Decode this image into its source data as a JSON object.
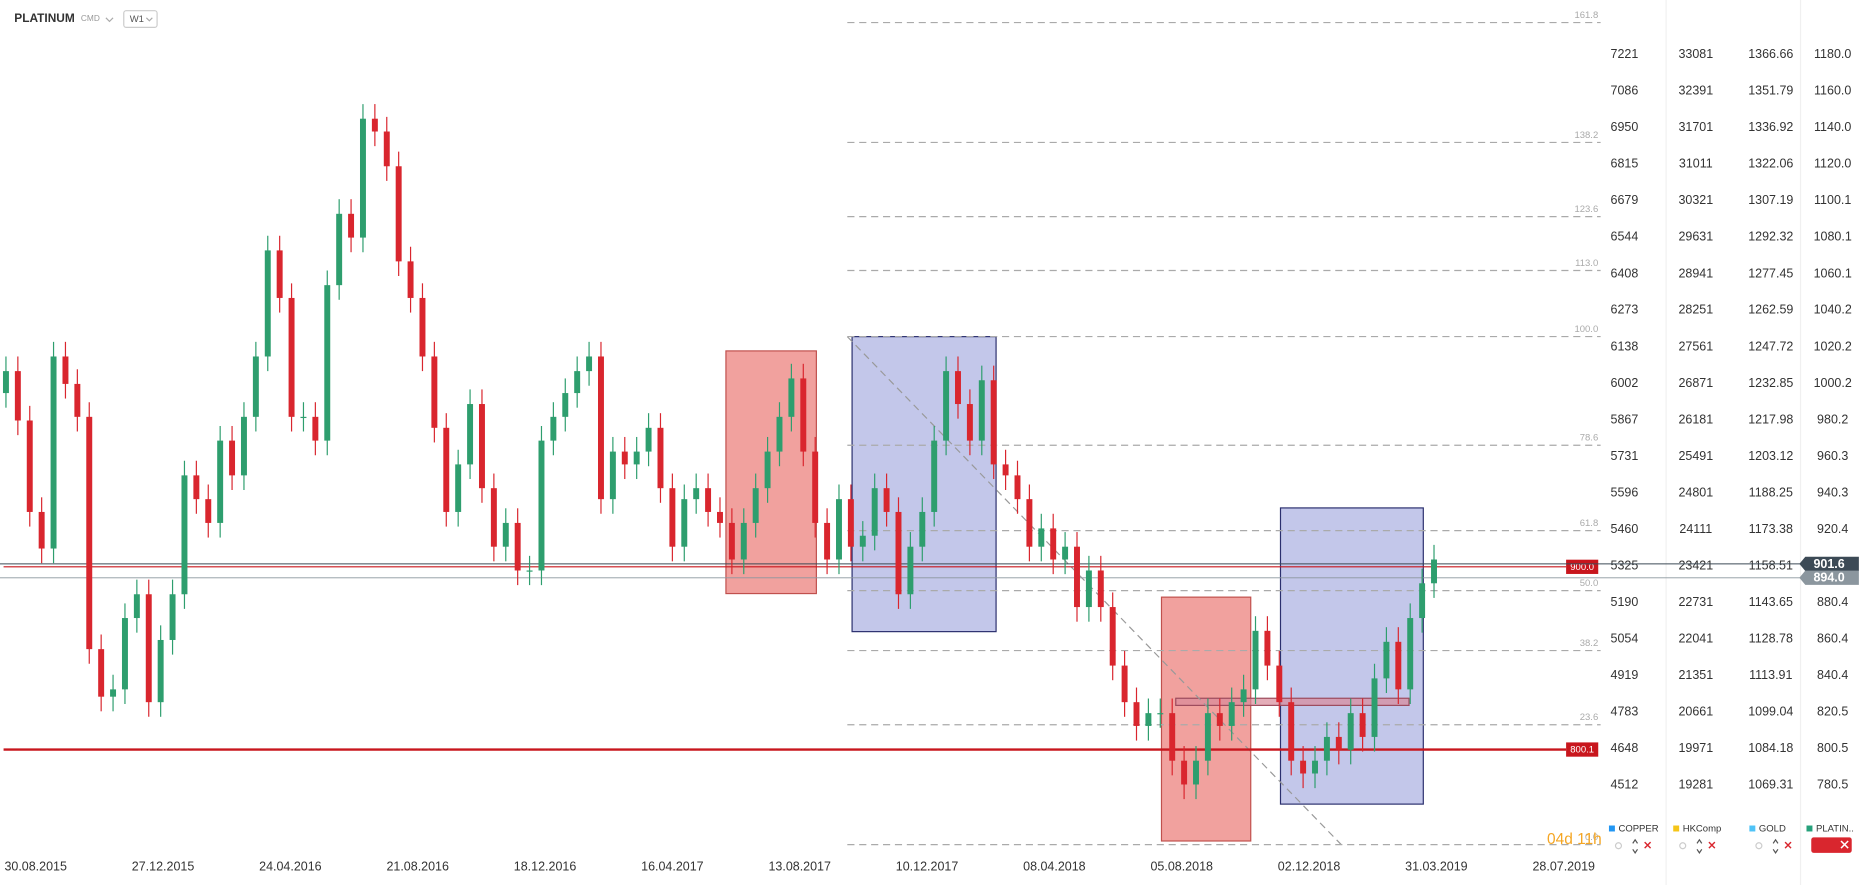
{
  "header": {
    "symbol": "PLATINUM",
    "type": "CMD",
    "timeframe": "W1"
  },
  "chart_data": {
    "type": "candlestick",
    "up_color": "#2e9e6e",
    "down_color": "#d9262e",
    "open": [
      995,
      1007,
      980,
      930,
      910,
      1015,
      1000,
      982,
      855,
      829,
      833,
      872,
      885,
      826,
      860,
      885,
      950,
      937,
      924,
      969,
      950,
      982,
      1015,
      1073,
      1047,
      982,
      982,
      969,
      1054,
      1093,
      1080,
      1145,
      1138,
      1119,
      1067,
      1047,
      1015,
      976,
      930,
      956,
      989,
      943,
      911,
      924,
      898,
      898,
      969,
      982,
      995,
      1007,
      1015,
      937,
      963,
      956,
      963,
      976,
      943,
      911,
      937,
      943,
      930,
      924,
      904,
      924,
      943,
      963,
      982,
      1003,
      963,
      924,
      904,
      937,
      911,
      917,
      943,
      930,
      885,
      911,
      930,
      969,
      1007,
      989,
      969,
      1002,
      956,
      950,
      937,
      911,
      921,
      904,
      911,
      878,
      898,
      878,
      846,
      826,
      813,
      820,
      820,
      794,
      781,
      794,
      820,
      813,
      826,
      833,
      865,
      846,
      826,
      794,
      787,
      794,
      807,
      800,
      820,
      807,
      839,
      859,
      833,
      872,
      891
    ],
    "high": [
      1015,
      1015,
      988,
      938,
      1023,
      1023,
      1008,
      990,
      863,
      841,
      880,
      893,
      893,
      868,
      893,
      958,
      958,
      945,
      977,
      977,
      990,
      1023,
      1081,
      1081,
      1055,
      990,
      990,
      1062,
      1101,
      1101,
      1153,
      1153,
      1146,
      1127,
      1075,
      1055,
      1023,
      984,
      964,
      997,
      997,
      951,
      932,
      932,
      906,
      977,
      990,
      1003,
      1015,
      1023,
      1023,
      971,
      971,
      971,
      984,
      984,
      951,
      945,
      951,
      951,
      938,
      932,
      932,
      951,
      971,
      990,
      1011,
      1011,
      971,
      932,
      945,
      945,
      925,
      951,
      951,
      938,
      919,
      938,
      977,
      1015,
      1015,
      997,
      1010,
      1010,
      964,
      958,
      945,
      929,
      929,
      919,
      919,
      906,
      906,
      886,
      854,
      834,
      828,
      828,
      828,
      802,
      802,
      828,
      828,
      834,
      841,
      873,
      873,
      854,
      834,
      802,
      802,
      815,
      815,
      828,
      828,
      847,
      867,
      867,
      880,
      899,
      912
    ],
    "low": [
      987,
      972,
      922,
      902,
      902,
      992,
      974,
      847,
      821,
      821,
      825,
      864,
      818,
      818,
      852,
      877,
      929,
      916,
      916,
      942,
      942,
      974,
      1007,
      1039,
      974,
      974,
      961,
      961,
      1046,
      1072,
      1072,
      1130,
      1111,
      1059,
      1039,
      1007,
      968,
      922,
      922,
      948,
      935,
      903,
      903,
      890,
      890,
      890,
      961,
      974,
      987,
      999,
      929,
      929,
      948,
      948,
      955,
      935,
      903,
      903,
      929,
      922,
      916,
      896,
      896,
      916,
      935,
      955,
      974,
      955,
      916,
      896,
      896,
      903,
      903,
      909,
      922,
      877,
      877,
      903,
      922,
      961,
      981,
      961,
      961,
      948,
      942,
      929,
      903,
      903,
      896,
      896,
      870,
      870,
      870,
      838,
      818,
      805,
      805,
      812,
      786,
      773,
      773,
      786,
      805,
      805,
      818,
      825,
      838,
      818,
      786,
      779,
      779,
      786,
      792,
      792,
      799,
      799,
      831,
      825,
      825,
      864,
      883
    ],
    "close": [
      1007,
      980,
      930,
      910,
      1015,
      1000,
      982,
      855,
      829,
      833,
      872,
      885,
      826,
      860,
      885,
      950,
      937,
      924,
      969,
      950,
      982,
      1015,
      1073,
      1047,
      982,
      982,
      969,
      1054,
      1093,
      1080,
      1145,
      1138,
      1119,
      1067,
      1047,
      1015,
      976,
      930,
      956,
      989,
      943,
      911,
      924,
      898,
      898,
      969,
      982,
      995,
      1007,
      1015,
      937,
      963,
      956,
      963,
      976,
      943,
      911,
      937,
      943,
      930,
      924,
      904,
      924,
      943,
      963,
      982,
      1003,
      963,
      924,
      904,
      937,
      911,
      917,
      943,
      930,
      885,
      911,
      930,
      969,
      1007,
      989,
      969,
      1002,
      956,
      950,
      937,
      911,
      921,
      904,
      911,
      878,
      898,
      878,
      846,
      826,
      813,
      820,
      820,
      794,
      781,
      794,
      820,
      813,
      826,
      833,
      865,
      846,
      826,
      794,
      787,
      794,
      807,
      800,
      820,
      807,
      839,
      859,
      833,
      872,
      891,
      904
    ],
    "ylim": [
      744.9,
      1209.9
    ],
    "yticks": [
      {
        "value": 1180,
        "label": "1180.0"
      },
      {
        "value": 1160,
        "label": "1160.0"
      },
      {
        "value": 1140,
        "label": "1140.0"
      },
      {
        "value": 1120,
        "label": "1120.0"
      },
      1100.1,
      1080.1,
      1060.1,
      1040.2,
      1020.2,
      1000.2,
      980.2,
      960.3,
      940.3,
      920.4,
      900.4,
      880.4,
      860.4,
      840.4,
      820.5,
      800.5,
      780.5
    ],
    "x_labels": [
      "30.08.2015",
      "27.12.2015",
      "24.04.2016",
      "21.08.2016",
      "18.12.2016",
      "16.04.2017",
      "13.08.2017",
      "10.12.2017",
      "08.04.2018",
      "05.08.2018",
      "02.12.2018",
      "31.03.2019",
      "28.07.2019"
    ],
    "fib": {
      "low": 748.1,
      "high": 1025.9,
      "color": "#aaaaaa",
      "levels": [
        161.8,
        138.2,
        123.6,
        {
          "value": 113,
          "label": "113.0"
        },
        {
          "value": 100,
          "label": "100.0"
        },
        78.6,
        61.8,
        {
          "value": 50,
          "label": "50.0"
        },
        38.2,
        23.6,
        {
          "value": 0,
          "label": "0.0"
        }
      ]
    },
    "levels": [
      {
        "value": 900,
        "label": "900.0",
        "color": "#c8161d"
      },
      {
        "value": 800.1,
        "color": "#c8161d"
      }
    ],
    "price_tags": [
      {
        "value": 901.6,
        "color": "#3c4a56"
      },
      {
        "value": 894,
        "label": "894.0",
        "color": "#8b969e"
      }
    ],
    "legend_name": "PLATIN..",
    "legend_color": "#26a17b",
    "other_axes": [
      {
        "name": "COPPER",
        "color": "#2196f3",
        "ticks": [
          7221,
          7086,
          6950,
          6815,
          6679,
          6544,
          6408,
          6273,
          6138,
          6002,
          5867,
          5731,
          5596,
          5460,
          5325,
          5190,
          5054,
          4919,
          4783,
          4648,
          4512
        ]
      },
      {
        "name": "HKComp",
        "color": "#f5c518",
        "ticks": [
          33081,
          32391,
          31701,
          31011,
          30321,
          29631,
          28941,
          28251,
          27561,
          26871,
          26181,
          25491,
          24801,
          24111,
          23421,
          22731,
          22041,
          21351,
          20661,
          19971,
          19281
        ]
      },
      {
        "name": "GOLD",
        "color": "#4fc3f7",
        "ticks": [
          1366.66,
          1351.79,
          1336.92,
          1322.06,
          1307.19,
          1292.32,
          1277.45,
          1262.59,
          1247.72,
          1232.85,
          1217.98,
          1203.12,
          1188.25,
          1173.38,
          1158.51,
          1143.65,
          1128.78,
          1113.91,
          1099.04,
          1084.18,
          1069.31
        ]
      }
    ],
    "countdown": "04d 11h"
  }
}
